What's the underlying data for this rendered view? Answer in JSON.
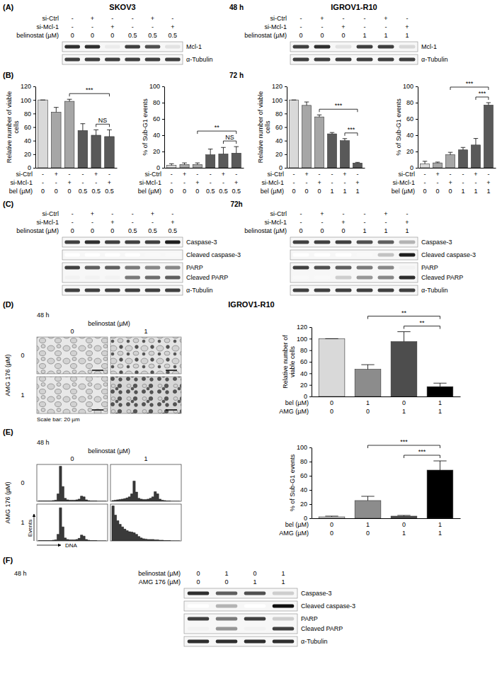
{
  "panel_a": {
    "letter": "(A)",
    "time": "48 h",
    "cell_lines": [
      "SKOV3",
      "IGROV1-R10"
    ],
    "blots": [
      {
        "conditions": [
          {
            "label": "si-Ctrl",
            "values": [
              "-",
              "+",
              "-",
              "-",
              "+",
              "-"
            ]
          },
          {
            "label": "si-Mcl-1",
            "values": [
              "-",
              "-",
              "+",
              "-",
              "-",
              "+"
            ]
          },
          {
            "label": "belinostat (µM)",
            "values": [
              "0",
              "0",
              "0",
              "0.5",
              "0.5",
              "0.5"
            ]
          }
        ],
        "rows": [
          {
            "labels": [
              "Mcl-1"
            ],
            "bands": [
              [
                0.85,
                0.85,
                0.15,
                0.8,
                0.75,
                0.2
              ]
            ]
          },
          {
            "labels": [
              "α-Tubulin"
            ],
            "bands": [
              [
                0.8,
                0.8,
                0.8,
                0.8,
                0.8,
                0.8
              ]
            ]
          }
        ]
      },
      {
        "conditions": [
          {
            "label": "si-Ctrl",
            "values": [
              "-",
              "+",
              "-",
              "-",
              "+",
              "-"
            ]
          },
          {
            "label": "si-Mcl-1",
            "values": [
              "-",
              "-",
              "+",
              "-",
              "-",
              "+"
            ]
          },
          {
            "label": "belinostat (µM)",
            "values": [
              "0",
              "0",
              "0",
              "1",
              "1",
              "1"
            ]
          }
        ],
        "rows": [
          {
            "labels": [
              "Mcl-1"
            ],
            "bands": [
              [
                0.8,
                0.85,
                0.2,
                0.8,
                0.8,
                0.25
              ]
            ]
          },
          {
            "labels": [
              "α-Tubulin"
            ],
            "bands": [
              [
                0.8,
                0.8,
                0.8,
                0.8,
                0.8,
                0.8
              ]
            ]
          }
        ]
      }
    ]
  },
  "panel_b": {
    "letter": "(B)",
    "time": "72 h"
  },
  "panel_c": {
    "letter": "(C)",
    "time": "72h",
    "blots": [
      {
        "conditions": [
          {
            "label": "si-Ctrl",
            "values": [
              "-",
              "+",
              "-",
              "-",
              "+",
              "-"
            ]
          },
          {
            "label": "si-Mcl-1",
            "values": [
              "-",
              "-",
              "+",
              "-",
              "-",
              "+"
            ]
          },
          {
            "label": "belinostat (µM)",
            "values": [
              "0",
              "0",
              "0",
              "0.5",
              "0.5",
              "0.5"
            ]
          }
        ],
        "rows": [
          {
            "labels": [
              "Caspase-3"
            ],
            "bands": [
              [
                0.8,
                0.85,
                0.8,
                0.8,
                0.8,
                0.9
              ]
            ]
          },
          {
            "labels": [
              "Cleaved caspase-3"
            ],
            "bands": [
              [
                0,
                0,
                0,
                0,
                0.05,
                0.05
              ]
            ]
          },
          {
            "labels": [
              "PARP",
              "Cleaved PARP"
            ],
            "bands": [
              [
                0.8,
                0.7,
                0.7,
                0.6,
                0.55,
                0.55
              ],
              [
                0.1,
                0.1,
                0.1,
                0.6,
                0.65,
                0.7
              ]
            ]
          },
          {
            "labels": [
              "α-Tubulin"
            ],
            "bands": [
              [
                0.8,
                0.8,
                0.8,
                0.8,
                0.8,
                0.8
              ]
            ]
          }
        ]
      },
      {
        "conditions": [
          {
            "label": "si-Ctrl",
            "values": [
              "-",
              "+",
              "-",
              "-",
              "+",
              "-"
            ]
          },
          {
            "label": "si-Mcl-1",
            "values": [
              "-",
              "-",
              "+",
              "-",
              "-",
              "+"
            ]
          },
          {
            "label": "belinostat (µM)",
            "values": [
              "0",
              "0",
              "0",
              "1",
              "1",
              "1"
            ]
          }
        ],
        "rows": [
          {
            "labels": [
              "Caspase-3"
            ],
            "bands": [
              [
                0.8,
                0.8,
                0.8,
                0.75,
                0.7,
                0.4
              ]
            ]
          },
          {
            "labels": [
              "Cleaved caspase-3"
            ],
            "bands": [
              [
                0,
                0,
                0,
                0.05,
                0.35,
                0.9
              ]
            ]
          },
          {
            "labels": [
              "PARP",
              "Cleaved PARP"
            ],
            "bands": [
              [
                0.8,
                0.75,
                0.7,
                0.6,
                0.55,
                0.1
              ],
              [
                0.05,
                0.05,
                0.3,
                0.5,
                0.55,
                0.85
              ]
            ]
          },
          {
            "labels": [
              "α-Tubulin"
            ],
            "bands": [
              [
                0.8,
                0.8,
                0.8,
                0.8,
                0.8,
                0.8
              ]
            ]
          }
        ]
      }
    ]
  },
  "panel_d": {
    "letter": "(D)",
    "title": "IGROV1-R10",
    "micro": {
      "time": "48 h",
      "col_title": "belinostat (µM)",
      "cols": [
        "0",
        "1"
      ],
      "row_title": "AMG 176 (µM)",
      "rows": [
        "0",
        "1"
      ],
      "note": "Scale bar: 20 µm"
    }
  },
  "panel_e": {
    "letter": "(E)",
    "flow": {
      "time": "48 h",
      "col_title": "belinostat (µM)",
      "cols": [
        "0",
        "1"
      ],
      "row_title": "AMG 176 (µM)",
      "rows": [
        "0",
        "1"
      ],
      "y_label": "Events",
      "x_label": "DNA",
      "ylim": [
        0,
        100
      ],
      "counts": [
        [
          1,
          1,
          1,
          1,
          1,
          1,
          2,
          3,
          20,
          95,
          40,
          8,
          4,
          3,
          3,
          3,
          4,
          6,
          14,
          12,
          4,
          2,
          1,
          1,
          1,
          0,
          0,
          0,
          0,
          0
        ],
        [
          2,
          3,
          4,
          5,
          6,
          7,
          9,
          12,
          20,
          55,
          25,
          8,
          6,
          5,
          5,
          6,
          8,
          12,
          26,
          20,
          6,
          3,
          2,
          1,
          1,
          0,
          0,
          0,
          0,
          0
        ],
        [
          1,
          1,
          1,
          1,
          1,
          1,
          2,
          3,
          18,
          90,
          38,
          8,
          4,
          3,
          3,
          3,
          4,
          7,
          16,
          13,
          4,
          2,
          1,
          1,
          1,
          0,
          0,
          0,
          0,
          0
        ],
        [
          95,
          70,
          55,
          45,
          38,
          32,
          28,
          25,
          24,
          22,
          18,
          12,
          8,
          6,
          5,
          4,
          4,
          4,
          3,
          3,
          2,
          2,
          1,
          1,
          1,
          0,
          0,
          0,
          0,
          0
        ]
      ]
    }
  },
  "panel_f": {
    "letter": "(F)",
    "time": "48 h",
    "blot": {
      "conditions": [
        {
          "label": "belinostat (µM)",
          "values": [
            "0",
            "1",
            "0",
            "1"
          ]
        },
        {
          "label": "AMG 176 (µM)",
          "values": [
            "0",
            "0",
            "1",
            "1"
          ]
        }
      ],
      "rows": [
        {
          "labels": [
            "Caspase-3"
          ],
          "bands": [
            [
              0.85,
              0.7,
              0.75,
              0.3
            ]
          ]
        },
        {
          "labels": [
            "Cleaved caspase-3"
          ],
          "bands": [
            [
              0,
              0.4,
              0,
              0.95
            ]
          ]
        },
        {
          "labels": [
            "PARP",
            "Cleaved PARP"
          ],
          "bands": [
            [
              0.8,
              0.6,
              0.8,
              0.3
            ],
            [
              0.1,
              0.5,
              0.1,
              0.8
            ]
          ]
        },
        {
          "labels": [
            "α-Tubulin"
          ],
          "bands": [
            [
              0.85,
              0.85,
              0.85,
              0.85
            ]
          ]
        }
      ]
    }
  },
  "chart_data": [
    {
      "type": "bar",
      "categories": [
        null,
        null,
        null,
        null,
        null,
        null
      ],
      "values": [
        100,
        82,
        98,
        55,
        48,
        46
      ],
      "errors": [
        0,
        7,
        3,
        10,
        8,
        10
      ],
      "colors": [
        "#d9d9d9",
        "#a6a6a6",
        "#a6a6a6",
        "#595959",
        "#595959",
        "#595959"
      ],
      "ylim": [
        0,
        120
      ],
      "yticks": [
        0,
        20,
        40,
        60,
        80,
        100,
        120
      ],
      "y_label": "Relative number of viable cells",
      "conditions": [
        {
          "label": "si-Ctrl",
          "values": [
            "-",
            "+",
            "-",
            "-",
            "+",
            "-"
          ]
        },
        {
          "label": "si-Mcl-1",
          "values": [
            "-",
            "-",
            "+",
            "-",
            "-",
            "+"
          ]
        },
        {
          "label": "bel (µM)",
          "values": [
            "0",
            "0",
            "0",
            "0.5",
            "0.5",
            "0.5"
          ]
        }
      ],
      "significance": [
        {
          "from": 2,
          "to": 5,
          "label": "***"
        },
        {
          "from": 4,
          "to": 5,
          "label": "NS"
        }
      ]
    },
    {
      "type": "bar",
      "categories": [
        null,
        null,
        null,
        null,
        null,
        null
      ],
      "values": [
        3,
        4,
        4,
        16,
        17,
        18
      ],
      "errors": [
        2,
        2,
        2,
        7,
        8,
        8
      ],
      "colors": [
        "#d9d9d9",
        "#a6a6a6",
        "#a6a6a6",
        "#595959",
        "#595959",
        "#595959"
      ],
      "ylim": [
        0,
        100
      ],
      "yticks": [
        0,
        20,
        40,
        60,
        80,
        100
      ],
      "y_label": "% of Sub-G1 events",
      "conditions": [
        {
          "label": "si-Ctrl",
          "values": [
            "-",
            "+",
            "-",
            "-",
            "+",
            "-"
          ]
        },
        {
          "label": "si-Mcl-1",
          "values": [
            "-",
            "-",
            "+",
            "-",
            "-",
            "+"
          ]
        },
        {
          "label": "bel (µM)",
          "values": [
            "0",
            "0",
            "0",
            "0.5",
            "0.5",
            "0.5"
          ]
        }
      ],
      "significance": [
        {
          "from": 2,
          "to": 5,
          "label": "**"
        },
        {
          "from": 4,
          "to": 5,
          "label": "NS"
        }
      ]
    },
    {
      "type": "bar",
      "categories": [
        null,
        null,
        null,
        null,
        null,
        null
      ],
      "values": [
        100,
        92,
        75,
        50,
        40,
        7
      ],
      "errors": [
        0,
        5,
        3,
        2,
        3,
        1
      ],
      "colors": [
        "#d9d9d9",
        "#a6a6a6",
        "#a6a6a6",
        "#595959",
        "#595959",
        "#595959"
      ],
      "ylim": [
        0,
        120
      ],
      "yticks": [
        0,
        20,
        40,
        60,
        80,
        100,
        120
      ],
      "y_label": "Relative number of viable cells",
      "conditions": [
        {
          "label": "si-Ctrl",
          "values": [
            "-",
            "+",
            "-",
            "-",
            "+",
            "-"
          ]
        },
        {
          "label": "si-Mcl-1",
          "values": [
            "-",
            "-",
            "+",
            "-",
            "-",
            "+"
          ]
        },
        {
          "label": "bel (µM)",
          "values": [
            "0",
            "0",
            "0",
            "1",
            "1",
            "1"
          ]
        }
      ],
      "significance": [
        {
          "from": 2,
          "to": 5,
          "label": "***"
        },
        {
          "from": 4,
          "to": 5,
          "label": "***"
        }
      ]
    },
    {
      "type": "bar",
      "categories": [
        null,
        null,
        null,
        null,
        null,
        null
      ],
      "values": [
        5,
        6,
        16,
        22,
        28,
        77
      ],
      "errors": [
        3,
        1,
        3,
        3,
        8,
        3
      ],
      "colors": [
        "#d9d9d9",
        "#a6a6a6",
        "#a6a6a6",
        "#595959",
        "#595959",
        "#595959"
      ],
      "ylim": [
        0,
        100
      ],
      "yticks": [
        0,
        20,
        40,
        60,
        80,
        100
      ],
      "y_label": "% of Sub-G1 events",
      "conditions": [
        {
          "label": "si-Ctrl",
          "values": [
            "-",
            "+",
            "-",
            "-",
            "+",
            "-"
          ]
        },
        {
          "label": "si-Mcl-1",
          "values": [
            "-",
            "-",
            "+",
            "-",
            "-",
            "+"
          ]
        },
        {
          "label": "bel (µM)",
          "values": [
            "0",
            "0",
            "0",
            "1",
            "1",
            "1"
          ]
        }
      ],
      "significance": [
        {
          "from": 2,
          "to": 5,
          "label": "***"
        },
        {
          "from": 4,
          "to": 5,
          "label": "***"
        }
      ]
    },
    {
      "type": "bar",
      "categories": [
        null,
        null,
        null,
        null
      ],
      "values": [
        100,
        47,
        95,
        17
      ],
      "errors": [
        0,
        8,
        17,
        6
      ],
      "colors": [
        "#d9d9d9",
        "#8c8c8c",
        "#4d4d4d",
        "#000000"
      ],
      "ylim": [
        0,
        120
      ],
      "yticks": [
        0,
        20,
        40,
        60,
        80,
        100,
        120
      ],
      "y_label": "Relative number of viable cells",
      "conditions": [
        {
          "label": "bel (µM)",
          "values": [
            "0",
            "1",
            "0",
            "1"
          ]
        },
        {
          "label": "AMG (µM)",
          "values": [
            "0",
            "0",
            "1",
            "1"
          ]
        }
      ],
      "significance": [
        {
          "from": 1,
          "to": 3,
          "label": "**"
        },
        {
          "from": 2,
          "to": 3,
          "label": "**"
        }
      ]
    },
    {
      "type": "bar",
      "categories": [
        null,
        null,
        null,
        null
      ],
      "values": [
        2,
        25,
        3,
        68
      ],
      "errors": [
        1,
        6,
        1,
        13
      ],
      "colors": [
        "#d9d9d9",
        "#8c8c8c",
        "#4d4d4d",
        "#000000"
      ],
      "ylim": [
        0,
        100
      ],
      "yticks": [
        0,
        20,
        40,
        60,
        80,
        100
      ],
      "y_label": "% of Sub-G1 events",
      "conditions": [
        {
          "label": "bel (µM)",
          "values": [
            "0",
            "1",
            "0",
            "1"
          ]
        },
        {
          "label": "AMG (µM)",
          "values": [
            "0",
            "0",
            "1",
            "1"
          ]
        }
      ],
      "significance": [
        {
          "from": 1,
          "to": 3,
          "label": "***"
        },
        {
          "from": 2,
          "to": 3,
          "label": "***"
        }
      ]
    }
  ]
}
